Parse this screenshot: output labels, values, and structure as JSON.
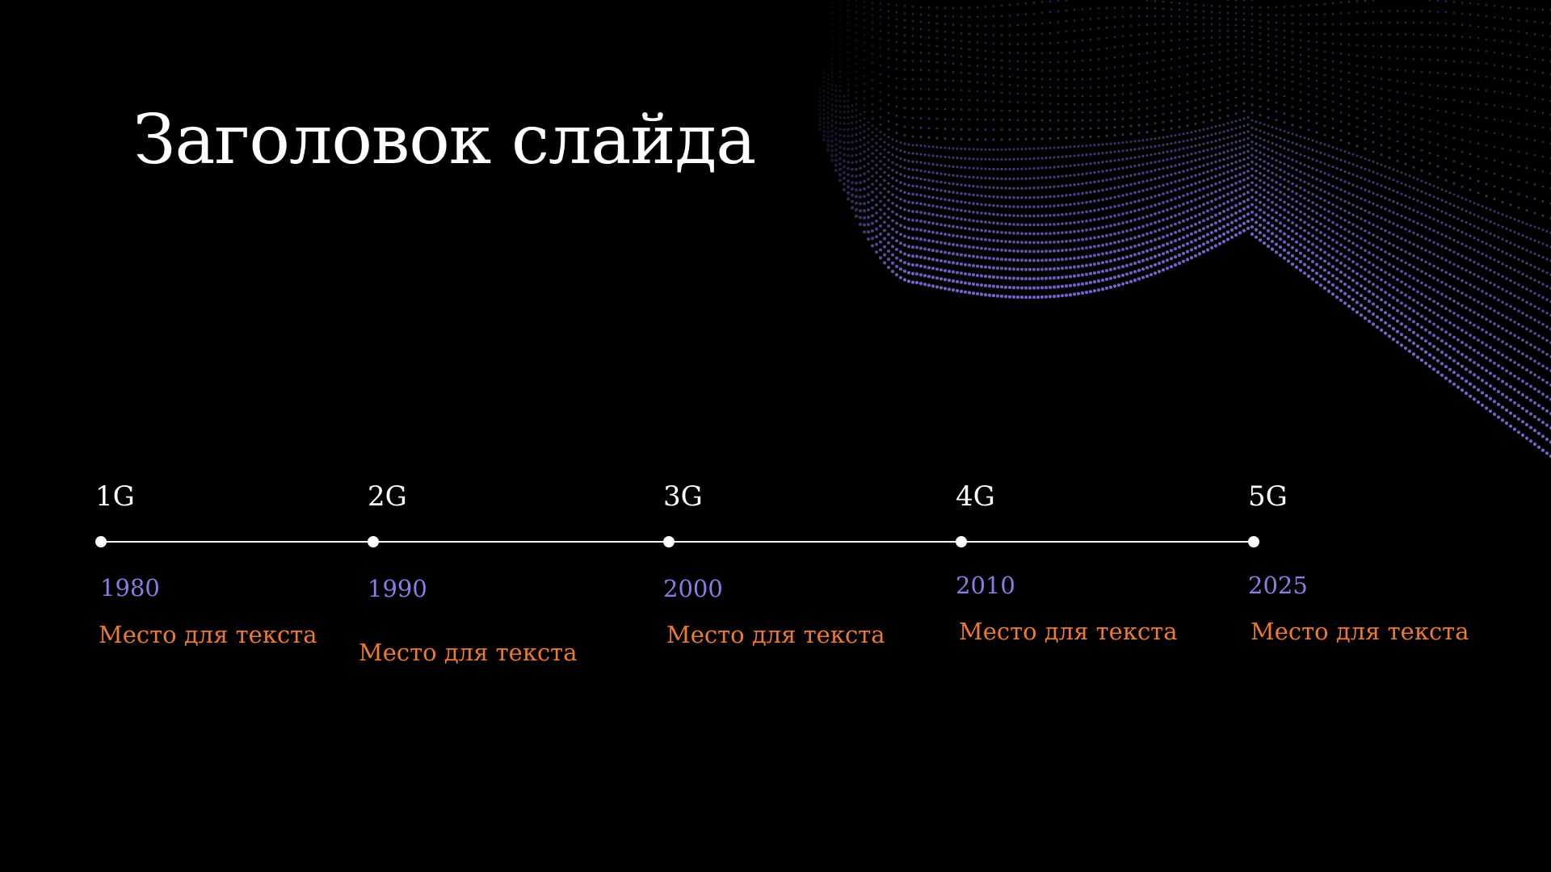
{
  "slide": {
    "title": "Заголовок слайда"
  },
  "timeline": {
    "items": [
      {
        "generation": "1G",
        "year": "1980",
        "caption": "Место для текста"
      },
      {
        "generation": "2G",
        "year": "1990",
        "caption": "Место для текста"
      },
      {
        "generation": "3G",
        "year": "2000",
        "caption": "Место для текста"
      },
      {
        "generation": "4G",
        "year": "2010",
        "caption": "Место для текста"
      },
      {
        "generation": "5G",
        "year": "2025",
        "caption": "Место для текста"
      }
    ]
  },
  "colors": {
    "background": "#000000",
    "title": "#ffffff",
    "line": "#ffffff",
    "year": "#8e7ae6",
    "caption": "#ef7a2f",
    "dots": "#7b68d8"
  }
}
